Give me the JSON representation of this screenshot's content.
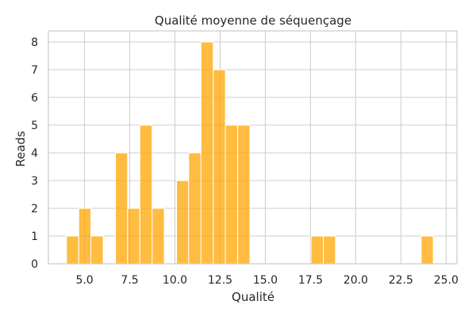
{
  "chart_data": {
    "type": "bar",
    "title": "Qualité moyenne de séquençage",
    "xlabel": "Qualité",
    "ylabel": "Reads",
    "xlim": [
      3.0,
      25.6
    ],
    "ylim": [
      0,
      8.4
    ],
    "x_ticks": [
      5.0,
      7.5,
      10.0,
      12.5,
      15.0,
      17.5,
      20.0,
      22.5,
      25.0
    ],
    "x_tick_labels": [
      "5.0",
      "7.5",
      "10.0",
      "12.5",
      "15.0",
      "17.5",
      "20.0",
      "22.5",
      "25.0"
    ],
    "y_ticks": [
      0,
      1,
      2,
      3,
      4,
      5,
      6,
      7,
      8
    ],
    "y_tick_labels": [
      "0",
      "1",
      "2",
      "3",
      "4",
      "5",
      "6",
      "7",
      "8"
    ],
    "grid": true,
    "bar_color": "#ffa500",
    "bins": [
      {
        "x0": 4.0,
        "x1": 4.68,
        "value": 1
      },
      {
        "x0": 4.68,
        "x1": 5.35,
        "value": 2
      },
      {
        "x0": 5.35,
        "x1": 6.03,
        "value": 1
      },
      {
        "x0": 6.71,
        "x1": 7.38,
        "value": 4
      },
      {
        "x0": 7.38,
        "x1": 8.06,
        "value": 2
      },
      {
        "x0": 8.06,
        "x1": 8.74,
        "value": 5
      },
      {
        "x0": 8.74,
        "x1": 9.41,
        "value": 2
      },
      {
        "x0": 10.09,
        "x1": 10.76,
        "value": 3
      },
      {
        "x0": 10.76,
        "x1": 11.44,
        "value": 4
      },
      {
        "x0": 11.44,
        "x1": 12.12,
        "value": 8
      },
      {
        "x0": 12.12,
        "x1": 12.79,
        "value": 7
      },
      {
        "x0": 12.79,
        "x1": 13.47,
        "value": 5
      },
      {
        "x0": 13.47,
        "x1": 14.15,
        "value": 5
      },
      {
        "x0": 17.53,
        "x1": 18.21,
        "value": 1
      },
      {
        "x0": 18.21,
        "x1": 18.88,
        "value": 1
      },
      {
        "x0": 23.62,
        "x1": 24.29,
        "value": 1
      }
    ]
  }
}
